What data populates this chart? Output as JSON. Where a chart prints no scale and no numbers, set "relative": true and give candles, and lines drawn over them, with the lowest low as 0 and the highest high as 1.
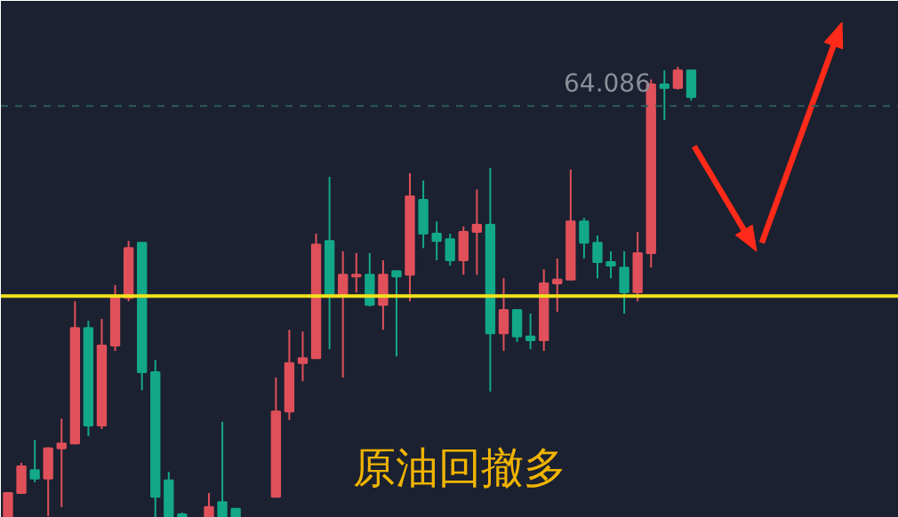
{
  "chart_data": {
    "type": "candlestick",
    "relative": true,
    "categories": [
      null,
      null,
      null,
      null,
      null,
      null,
      null,
      null,
      null,
      null,
      null,
      null,
      null,
      null,
      null,
      null,
      null,
      null,
      null,
      null,
      null,
      null,
      null,
      null,
      null,
      null,
      null,
      null,
      null,
      null,
      null,
      null,
      null,
      null,
      null,
      null,
      null,
      null,
      null,
      null,
      null,
      null,
      null,
      null,
      null,
      null,
      null,
      null,
      null,
      null,
      null,
      null,
      null,
      null,
      null,
      null,
      null,
      null,
      null,
      null,
      null,
      null,
      null,
      null,
      null,
      null,
      null
    ],
    "ohlc": [
      [
        0,
        0.055,
        0,
        0.055
      ],
      [
        0.055,
        0.122,
        0.055,
        0.114
      ],
      [
        0.106,
        0.173,
        0.079,
        0.087
      ],
      [
        0.087,
        0.157,
        0.004,
        0.154
      ],
      [
        0.154,
        0.22,
        0.024,
        0.165
      ],
      [
        0.165,
        0.48,
        0.165,
        0.421
      ],
      [
        0.421,
        0.437,
        0.181,
        0.205
      ],
      [
        0.205,
        0.441,
        0.197,
        0.382
      ],
      [
        0.382,
        0.516,
        0.37,
        0.488
      ],
      [
        0.488,
        0.614,
        0.48,
        0.598
      ],
      [
        0.61,
        0.61,
        0.283,
        0.323
      ],
      [
        0.323,
        0.35,
        0,
        0.047
      ],
      [
        0.083,
        0.102,
        0,
        0
      ],
      [
        0.008,
        0.012,
        0,
        0
      ],
      null,
      [
        0,
        0.055,
        0,
        0.024
      ],
      [
        0.035,
        0.213,
        0,
        0
      ],
      [
        0.02,
        0.02,
        0,
        0
      ],
      null,
      null,
      [
        0.047,
        0.311,
        0.047,
        0.236
      ],
      [
        0.236,
        0.417,
        0.217,
        0.343
      ],
      [
        0.343,
        0.413,
        0.303,
        0.354
      ],
      [
        0.354,
        0.63,
        0.354,
        0.606
      ],
      [
        0.614,
        0.756,
        0.374,
        0.492
      ],
      [
        0.492,
        0.591,
        0.311,
        0.539
      ],
      [
        0.535,
        0.587,
        0.5,
        0.539
      ],
      [
        0.539,
        0.587,
        0.469,
        0.472
      ],
      [
        0.472,
        0.571,
        0.417,
        0.539
      ],
      [
        0.547,
        0.547,
        0.358,
        0.535
      ],
      [
        0.539,
        0.764,
        0.48,
        0.713
      ],
      [
        0.705,
        0.748,
        0.598,
        0.63
      ],
      [
        0.63,
        0.657,
        0.571,
        0.614
      ],
      [
        0.618,
        0.63,
        0.559,
        0.571
      ],
      [
        0.571,
        0.646,
        0.539,
        0.634
      ],
      [
        0.634,
        0.728,
        0.539,
        0.65
      ],
      [
        0.65,
        0.776,
        0.28,
        0.409
      ],
      [
        0.409,
        0.531,
        0.37,
        0.461
      ],
      [
        0.461,
        0.461,
        0.39,
        0.402
      ],
      [
        0.402,
        0.453,
        0.374,
        0.394
      ],
      [
        0.394,
        0.551,
        0.37,
        0.52
      ],
      [
        0.52,
        0.575,
        0.457,
        0.528
      ],
      [
        0.528,
        0.772,
        0.528,
        0.657
      ],
      [
        0.657,
        0.665,
        0.575,
        0.61
      ],
      [
        0.61,
        0.626,
        0.531,
        0.567
      ],
      [
        0.567,
        0.591,
        0.531,
        0.559
      ],
      [
        0.555,
        0.591,
        0.453,
        0.5
      ],
      [
        0.5,
        0.634,
        0.48,
        0.587
      ],
      [
        0.587,
        0.972,
        0.555,
        0.961
      ],
      [
        0.961,
        0.992,
        0.882,
        0.953
      ],
      [
        0.953,
        1,
        0.949,
        0.992
      ],
      [
        0.992,
        0.992,
        0.925,
        0.933
      ],
      null,
      null,
      null,
      null,
      null,
      null,
      null,
      null,
      null,
      null,
      null,
      null,
      null,
      null,
      null
    ],
    "colors": [
      "#e0505a",
      "#e0505a",
      "#13a88a",
      "#e0505a",
      "#e0505a",
      "#e0505a",
      "#13a88a",
      "#e0505a",
      "#e0505a",
      "#e0505a",
      "#13a88a",
      "#13a88a",
      "#13a88a",
      "#13a88a",
      null,
      "#e0505a",
      "#13a88a",
      "#13a88a",
      null,
      null,
      "#e0505a",
      "#e0505a",
      "#e0505a",
      "#e0505a",
      "#13a88a",
      "#e0505a",
      "#e0505a",
      "#13a88a",
      "#e0505a",
      "#13a88a",
      "#e0505a",
      "#13a88a",
      "#13a88a",
      "#13a88a",
      "#e0505a",
      "#e0505a",
      "#13a88a",
      "#e0505a",
      "#13a88a",
      "#13a88a",
      "#e0505a",
      "#e0505a",
      "#e0505a",
      "#13a88a",
      "#13a88a",
      "#13a88a",
      "#13a88a",
      "#e0505a",
      "#e0505a",
      "#13a88a",
      "#e0505a",
      "#13a88a",
      null,
      null,
      null,
      null,
      null,
      null,
      null,
      null,
      null,
      null,
      null,
      null,
      null,
      null,
      null
    ],
    "ref_lines": [
      {
        "axis": "y",
        "value": 0.492,
        "color": "#f2e21c",
        "line_style": "solid"
      },
      {
        "axis": "y",
        "value": 0.913,
        "color": "#2e5c5a",
        "line_style": "dashed"
      }
    ],
    "annotations": [
      "64.086",
      "原油回撤多"
    ]
  }
}
